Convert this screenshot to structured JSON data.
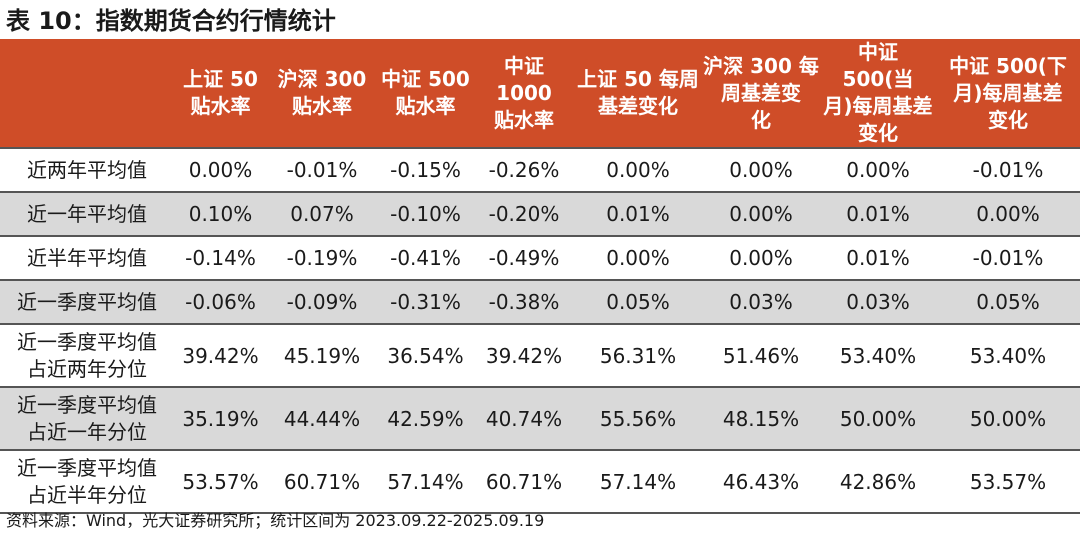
{
  "title": "表 10：指数期货合约行情统计",
  "table": {
    "headers": [
      "",
      "上证 50\n贴水率",
      "沪深 300\n贴水率",
      "中证 500\n贴水率",
      "中证 1000\n贴水率",
      "上证 50 每周\n基差变化",
      "沪深 300 每\n周基差变\n化",
      "中证 500(当\n月)每周基差\n变化",
      "中证 500(下\n月)每周基差\n变化"
    ],
    "rows": [
      [
        "近两年平均值",
        "0.00%",
        "-0.01%",
        "-0.15%",
        "-0.26%",
        "0.00%",
        "0.00%",
        "0.00%",
        "-0.01%"
      ],
      [
        "近一年平均值",
        "0.10%",
        "0.07%",
        "-0.10%",
        "-0.20%",
        "0.01%",
        "0.00%",
        "0.01%",
        "0.00%"
      ],
      [
        "近半年平均值",
        "-0.14%",
        "-0.19%",
        "-0.41%",
        "-0.49%",
        "0.00%",
        "0.00%",
        "0.01%",
        "-0.01%"
      ],
      [
        "近一季度平均值",
        "-0.06%",
        "-0.09%",
        "-0.31%",
        "-0.38%",
        "0.05%",
        "0.03%",
        "0.03%",
        "0.05%"
      ],
      [
        "近一季度平均值\n占近两年分位",
        "39.42%",
        "45.19%",
        "36.54%",
        "39.42%",
        "56.31%",
        "51.46%",
        "53.40%",
        "53.40%"
      ],
      [
        "近一季度平均值\n占近一年分位",
        "35.19%",
        "44.44%",
        "42.59%",
        "40.74%",
        "55.56%",
        "48.15%",
        "50.00%",
        "50.00%"
      ],
      [
        "近一季度平均值\n占近半年分位",
        "53.57%",
        "60.71%",
        "57.14%",
        "60.71%",
        "57.14%",
        "46.43%",
        "42.86%",
        "53.57%"
      ]
    ]
  },
  "source": "资料来源：Wind，光大证券研究所；统计区间为 2023.09.22-2025.09.19",
  "colors": {
    "header_bg": "#cf4d28",
    "header_text": "#ffffff",
    "alt_row_bg": "#d9d9d9",
    "rule": "#555555"
  }
}
